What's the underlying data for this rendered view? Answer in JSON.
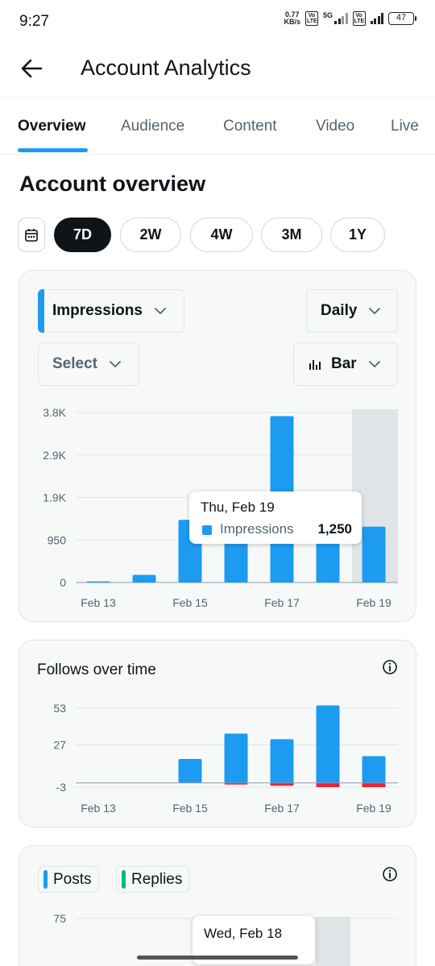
{
  "status_bar": {
    "time": "9:27",
    "net_speed_value": "0.77",
    "net_speed_unit": "KB/s",
    "volte_1": "Vo LTE",
    "network_type": "5G",
    "volte_2": "Vo LTE",
    "battery": "47"
  },
  "header": {
    "title": "Account Analytics",
    "back_icon": "arrow-left-icon"
  },
  "tabs": [
    {
      "label": "Overview",
      "active": true
    },
    {
      "label": "Audience"
    },
    {
      "label": "Content"
    },
    {
      "label": "Video"
    },
    {
      "label": "Live"
    }
  ],
  "section_title": "Account overview",
  "date_ranges": [
    {
      "label": "7D",
      "active": true
    },
    {
      "label": "2W"
    },
    {
      "label": "4W"
    },
    {
      "label": "3M"
    },
    {
      "label": "1Y"
    }
  ],
  "impressions_card": {
    "metric_dropdown": "Impressions",
    "interval_dropdown": "Daily",
    "compare_dropdown": "Select",
    "chart_type_dropdown": "Bar",
    "tooltip": {
      "date": "Thu, Feb 19",
      "series": "Impressions",
      "value": "1,250"
    }
  },
  "follows_card": {
    "title": "Follows over time"
  },
  "posts_card": {
    "legend": [
      {
        "label": "Posts",
        "color": "#1d9bf0"
      },
      {
        "label": "Replies",
        "color": "#00ba7c"
      }
    ],
    "tooltip_date": "Wed, Feb 18"
  },
  "colors": {
    "accent": "#1d9bf0",
    "negative": "#f4212e",
    "highlight_band": "#e1e4e6"
  },
  "chart_data": [
    {
      "type": "bar",
      "categories": [
        "Feb 13",
        "Feb 14",
        "Feb 15",
        "Feb 16",
        "Feb 17",
        "Feb 18",
        "Feb 19"
      ],
      "x_tick_labels": [
        "Feb 13",
        "Feb 15",
        "Feb 17",
        "Feb 19"
      ],
      "series": [
        {
          "name": "Impressions",
          "values": [
            25,
            170,
            1400,
            1000,
            3720,
            1250,
            1250
          ]
        }
      ],
      "yticks": [
        0,
        950,
        1900,
        2850,
        3800
      ],
      "ytick_labels": [
        "0",
        "950",
        "1.9K",
        "2.9K",
        "3.8K"
      ],
      "ylim": [
        0,
        3800
      ],
      "highlighted_category": "Feb 19",
      "grid": true
    },
    {
      "type": "bar",
      "categories": [
        "Feb 13",
        "Feb 14",
        "Feb 15",
        "Feb 16",
        "Feb 17",
        "Feb 18",
        "Feb 19"
      ],
      "x_tick_labels": [
        "Feb 13",
        "Feb 15",
        "Feb 17",
        "Feb 19"
      ],
      "series": [
        {
          "values": [
            0,
            0,
            17,
            35,
            31,
            55,
            19
          ]
        },
        {
          "values": [
            0,
            0,
            0,
            -1,
            -2,
            -3,
            -3
          ]
        }
      ],
      "yticks": [
        -3,
        27,
        53
      ],
      "ytick_labels": [
        "-3",
        "27",
        "53"
      ],
      "ylim": [
        -3,
        53
      ],
      "grid": true
    },
    {
      "type": "bar",
      "yticks": [
        75
      ],
      "ytick_labels": [
        "75"
      ],
      "highlighted_category": "Feb 18"
    }
  ]
}
